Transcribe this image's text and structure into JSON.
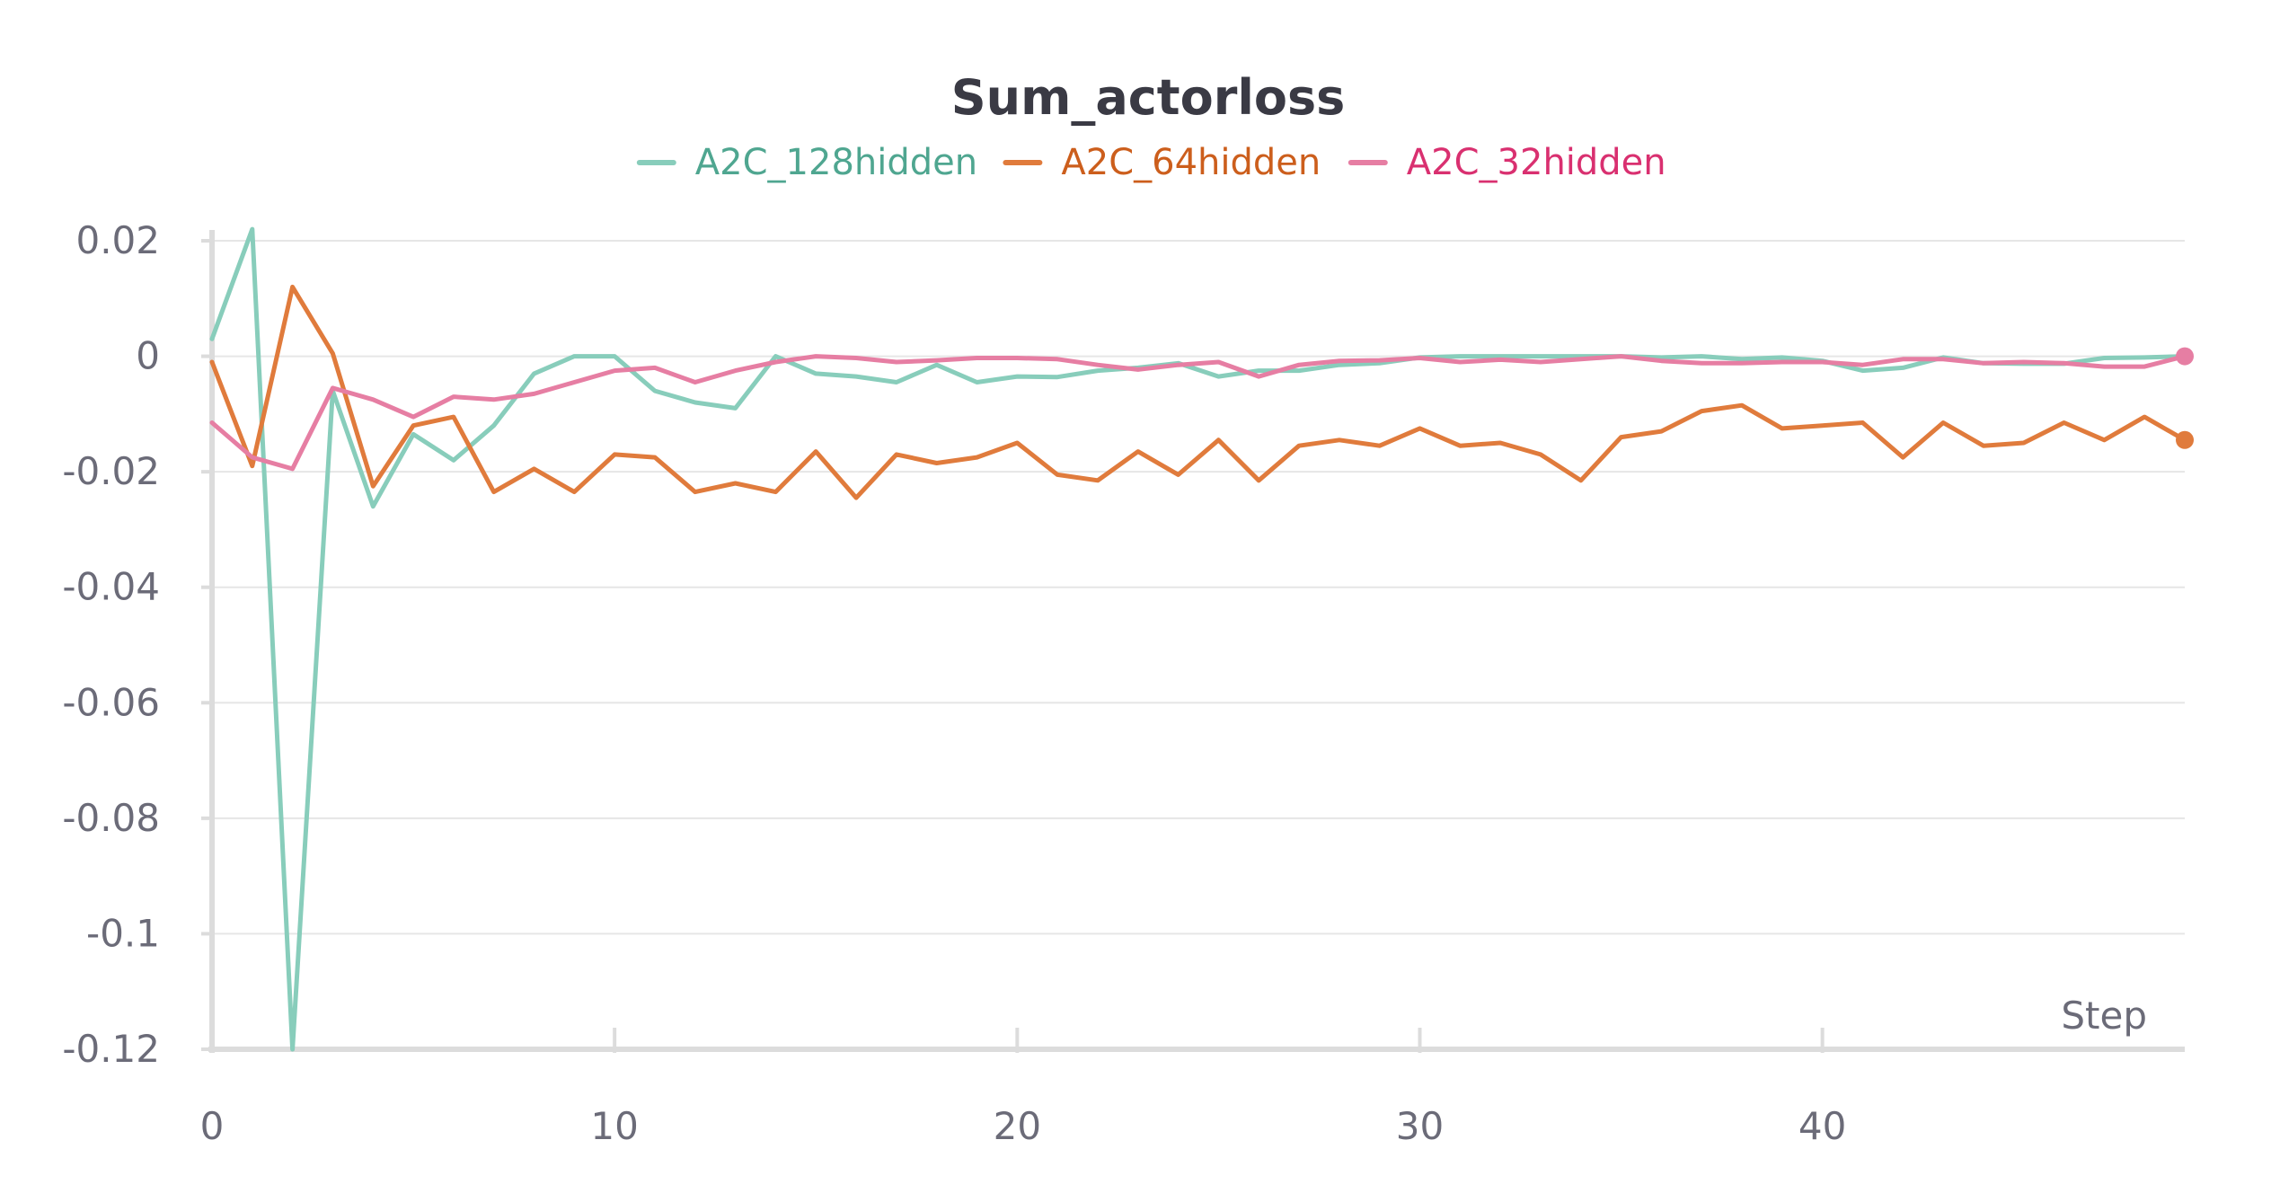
{
  "chart_data": {
    "type": "line",
    "title": "Sum_actorloss",
    "xlabel": "Step",
    "ylabel": "",
    "xlim": [
      0,
      49
    ],
    "ylim": [
      -0.12,
      0.02
    ],
    "x_ticks": [
      0,
      10,
      20,
      30,
      40
    ],
    "y_ticks": [
      0.02,
      0,
      -0.02,
      -0.04,
      -0.06,
      -0.08,
      -0.1,
      -0.12
    ],
    "y_tick_labels": [
      "0.02",
      "0",
      "-0.02",
      "-0.04",
      "-0.06",
      "-0.08",
      "-0.1",
      "-0.12"
    ],
    "grid": true,
    "legend_position": "top-center",
    "series": [
      {
        "name": "A2C_128hidden",
        "color": "#88cdbb",
        "text_color": "#4fa690",
        "end_marker": false,
        "x": [
          0,
          1,
          2,
          3,
          4,
          5,
          6,
          7,
          8,
          9,
          10,
          11,
          12,
          13,
          14,
          15,
          16,
          17,
          18,
          19,
          20,
          21,
          22,
          23,
          24,
          25,
          26,
          27,
          28,
          29,
          30,
          31,
          32,
          33,
          34,
          35,
          36,
          37,
          38,
          39,
          40,
          41,
          42,
          43,
          44,
          45,
          46,
          47,
          48,
          49
        ],
        "values": [
          0.003,
          0.022,
          -0.12,
          -0.006,
          -0.026,
          -0.0135,
          -0.018,
          -0.012,
          -0.003,
          0.0,
          0.0,
          -0.006,
          -0.008,
          -0.009,
          0.0,
          -0.003,
          -0.0035,
          -0.0045,
          -0.0015,
          -0.0045,
          -0.0035,
          -0.0036,
          -0.0025,
          -0.002,
          -0.0012,
          -0.0035,
          -0.0025,
          -0.0025,
          -0.0015,
          -0.0012,
          -0.0002,
          0.0,
          0.0,
          0.0,
          0.0,
          0.0,
          -0.0002,
          0.0,
          -0.0005,
          -0.0002,
          -0.0008,
          -0.0025,
          -0.002,
          -0.0002,
          -0.0012,
          -0.0013,
          -0.0013,
          -0.0003,
          -0.0002,
          0.0
        ]
      },
      {
        "name": "A2C_64hidden",
        "color": "#e07b3c",
        "text_color": "#cc5e1c",
        "end_marker": true,
        "x": [
          0,
          1,
          2,
          3,
          4,
          5,
          6,
          7,
          8,
          9,
          10,
          11,
          12,
          13,
          14,
          15,
          16,
          17,
          18,
          19,
          20,
          21,
          22,
          23,
          24,
          25,
          26,
          27,
          28,
          29,
          30,
          31,
          32,
          33,
          34,
          35,
          36,
          37,
          38,
          39,
          40,
          41,
          42,
          43,
          44,
          45,
          46,
          47,
          48,
          49
        ],
        "values": [
          -0.001,
          -0.019,
          0.012,
          0.0005,
          -0.0225,
          -0.012,
          -0.0105,
          -0.0235,
          -0.0195,
          -0.0235,
          -0.017,
          -0.0175,
          -0.0235,
          -0.022,
          -0.0235,
          -0.0165,
          -0.0245,
          -0.017,
          -0.0185,
          -0.0175,
          -0.015,
          -0.0205,
          -0.0215,
          -0.0165,
          -0.0205,
          -0.0145,
          -0.0215,
          -0.0155,
          -0.0145,
          -0.0155,
          -0.0125,
          -0.0155,
          -0.015,
          -0.017,
          -0.0215,
          -0.014,
          -0.013,
          -0.0095,
          -0.0085,
          -0.0125,
          -0.012,
          -0.0115,
          -0.0175,
          -0.0115,
          -0.0155,
          -0.015,
          -0.0115,
          -0.0145,
          -0.0105,
          -0.0145
        ]
      },
      {
        "name": "A2C_32hidden",
        "color": "#e67ea3",
        "text_color": "#d93070",
        "end_marker": true,
        "x": [
          0,
          1,
          2,
          3,
          4,
          5,
          6,
          7,
          8,
          9,
          10,
          11,
          12,
          13,
          14,
          15,
          16,
          17,
          18,
          19,
          20,
          21,
          22,
          23,
          24,
          25,
          26,
          27,
          28,
          29,
          30,
          31,
          32,
          33,
          34,
          35,
          36,
          37,
          38,
          39,
          40,
          41,
          42,
          43,
          44,
          45,
          46,
          47,
          48,
          49
        ],
        "values": [
          -0.0115,
          -0.0175,
          -0.0195,
          -0.0055,
          -0.0075,
          -0.0105,
          -0.007,
          -0.0075,
          -0.0065,
          -0.0045,
          -0.0025,
          -0.002,
          -0.0045,
          -0.0025,
          -0.001,
          0.0,
          -0.0003,
          -0.001,
          -0.0007,
          -0.0003,
          -0.0003,
          -0.0005,
          -0.0015,
          -0.0023,
          -0.0015,
          -0.001,
          -0.0035,
          -0.0015,
          -0.0008,
          -0.0007,
          -0.0003,
          -0.001,
          -0.0006,
          -0.001,
          -0.0005,
          0.0,
          -0.0008,
          -0.0012,
          -0.0012,
          -0.001,
          -0.001,
          -0.0015,
          -0.0005,
          -0.0005,
          -0.0012,
          -0.001,
          -0.0012,
          -0.0018,
          -0.0018,
          0.0
        ]
      }
    ]
  }
}
